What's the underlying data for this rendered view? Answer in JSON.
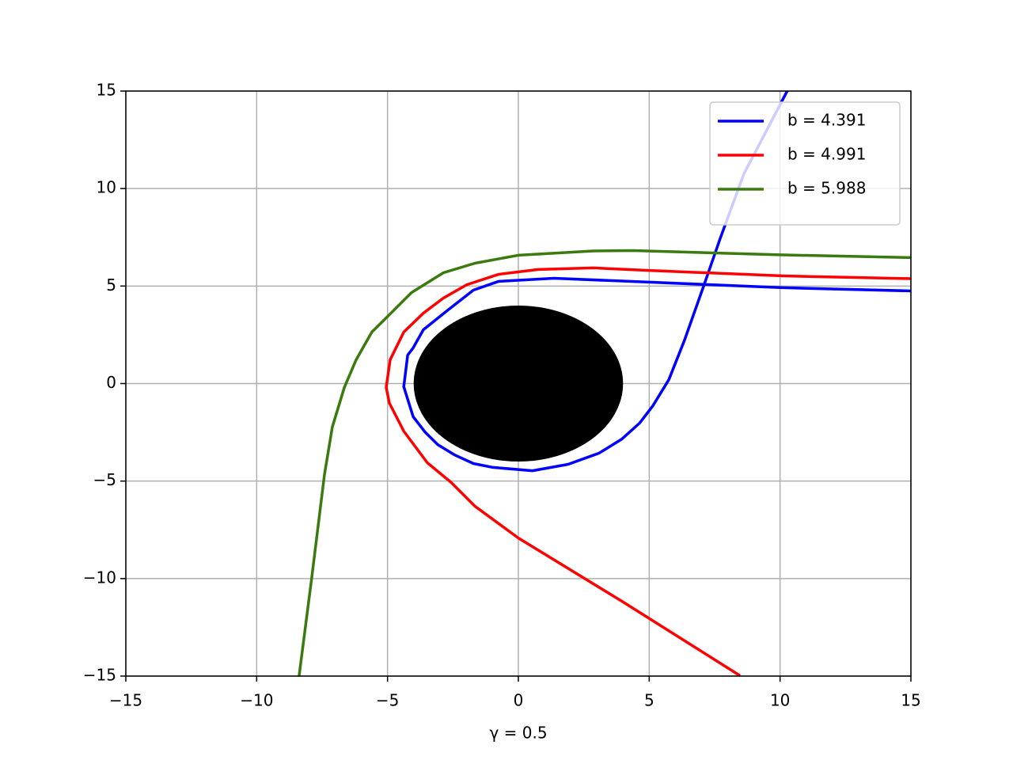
{
  "chart_data": {
    "type": "line",
    "xlabel": "γ = 0.5",
    "xlim": [
      -15,
      15
    ],
    "ylim": [
      -15,
      15
    ],
    "xticks": [
      {
        "value": -15,
        "label": "−15"
      },
      {
        "value": -10,
        "label": "−10"
      },
      {
        "value": -5,
        "label": "−5"
      },
      0,
      5,
      10,
      15
    ],
    "yticks": [
      {
        "value": -15,
        "label": "−15"
      },
      {
        "value": -10,
        "label": "−10"
      },
      {
        "value": -5,
        "label": "−5"
      },
      0,
      5,
      10,
      15
    ],
    "grid": true,
    "legend": "upper right",
    "circle": {
      "x": 0,
      "y": 0,
      "r": 4,
      "color": "#000000"
    },
    "series": [
      {
        "name": "b = 4.391",
        "color": "#0000ff",
        "x": [
          15,
          10,
          5,
          1.36,
          -0.76,
          -1.72,
          -2.72,
          -3.63,
          -4.02,
          -4.23,
          -4.38,
          -4.02,
          -3.57,
          -3.08,
          -2.45,
          -1.72,
          -0.97,
          0.54,
          1.9,
          3.08,
          3.96,
          4.63,
          5.14,
          5.75,
          6.35,
          7.08,
          7.71,
          8.62,
          10.28
        ],
        "y": [
          4.75,
          4.92,
          5.2,
          5.4,
          5.24,
          4.79,
          3.74,
          2.76,
          1.83,
          1.46,
          -0.16,
          -1.7,
          -2.48,
          -3.13,
          -3.65,
          -4.1,
          -4.3,
          -4.47,
          -4.14,
          -3.57,
          -2.84,
          -2.03,
          -1.14,
          0.2,
          2.23,
          5.0,
          7.43,
          10.76,
          15.02
        ]
      },
      {
        "name": "b = 4.991",
        "color": "#ff0000",
        "x": [
          15,
          10.13,
          4.99,
          2.87,
          0.76,
          -0.76,
          -1.97,
          -2.87,
          -3.63,
          -4.38,
          -4.9,
          -5.05,
          -4.93,
          -4.38,
          -3.48,
          -2.57,
          -1.66,
          0,
          4,
          8.47
        ],
        "y": [
          5.38,
          5.52,
          5.8,
          5.93,
          5.85,
          5.6,
          5.07,
          4.38,
          3.61,
          2.64,
          1.22,
          -0.2,
          -1.0,
          -2.44,
          -4.06,
          -5.07,
          -6.29,
          -7.92,
          -11.2,
          -14.98
        ]
      },
      {
        "name": "b = 5.988",
        "color": "#3a7a0e",
        "x": [
          -8.38,
          -7.9,
          -7.41,
          -7.11,
          -6.65,
          -6.2,
          -5.6,
          -4.99,
          -4.08,
          -2.87,
          -1.66,
          0,
          2.87,
          4.38,
          10,
          15
        ],
        "y": [
          -15,
          -10,
          -4.67,
          -2.23,
          -0.2,
          1.22,
          2.64,
          3.45,
          4.67,
          5.68,
          6.17,
          6.58,
          6.8,
          6.82,
          6.6,
          6.46
        ]
      }
    ]
  }
}
